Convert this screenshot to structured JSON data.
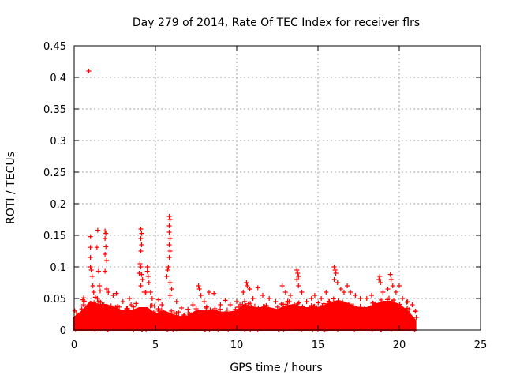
{
  "chart_data": {
    "type": "scatter",
    "title": "Day 279 of 2014, Rate Of TEC Index for receiver flrs",
    "xlabel": "GPS time / hours",
    "ylabel": "ROTI / TECUs",
    "xlim": [
      0,
      25
    ],
    "ylim": [
      0,
      0.45
    ],
    "x_ticks": [
      0,
      5,
      10,
      15,
      20,
      25
    ],
    "x_tick_labels": [
      "0",
      "5",
      "10",
      "15",
      "20",
      "25"
    ],
    "y_ticks": [
      0,
      0.05,
      0.1,
      0.15,
      0.2,
      0.25,
      0.3,
      0.35,
      0.4,
      0.45
    ],
    "y_tick_labels": [
      "0",
      "0.05",
      "0.1",
      "0.15",
      "0.2",
      "0.25",
      "0.3",
      "0.35",
      "0.4",
      "0.45"
    ],
    "grid": true,
    "marker": "+",
    "marker_color": "#ff0000",
    "series": [
      {
        "name": "ROTI",
        "points": [
          [
            0.9,
            0.41
          ],
          [
            1.0,
            0.148
          ],
          [
            1.0,
            0.131
          ],
          [
            1.0,
            0.115
          ],
          [
            1.0,
            0.1
          ],
          [
            1.05,
            0.095
          ],
          [
            1.1,
            0.085
          ],
          [
            1.15,
            0.07
          ],
          [
            1.2,
            0.06
          ],
          [
            1.3,
            0.052
          ],
          [
            1.4,
            0.131
          ],
          [
            1.45,
            0.158
          ],
          [
            1.5,
            0.093
          ],
          [
            1.55,
            0.07
          ],
          [
            1.6,
            0.062
          ],
          [
            1.9,
            0.157
          ],
          [
            1.95,
            0.153
          ],
          [
            1.9,
            0.145
          ],
          [
            1.95,
            0.132
          ],
          [
            1.9,
            0.12
          ],
          [
            2.0,
            0.11
          ],
          [
            1.9,
            0.093
          ],
          [
            2.0,
            0.065
          ],
          [
            2.1,
            0.06
          ],
          [
            4.1,
            0.16
          ],
          [
            4.15,
            0.153
          ],
          [
            4.1,
            0.145
          ],
          [
            4.15,
            0.135
          ],
          [
            4.1,
            0.125
          ],
          [
            4.05,
            0.105
          ],
          [
            4.1,
            0.1
          ],
          [
            4.0,
            0.09
          ],
          [
            4.15,
            0.088
          ],
          [
            4.2,
            0.08
          ],
          [
            4.1,
            0.07
          ],
          [
            4.3,
            0.06
          ],
          [
            4.4,
            0.06
          ],
          [
            4.5,
            0.1
          ],
          [
            4.5,
            0.093
          ],
          [
            4.55,
            0.085
          ],
          [
            4.6,
            0.075
          ],
          [
            4.7,
            0.06
          ],
          [
            4.8,
            0.05
          ],
          [
            5.85,
            0.18
          ],
          [
            5.9,
            0.175
          ],
          [
            5.85,
            0.165
          ],
          [
            5.85,
            0.155
          ],
          [
            5.9,
            0.145
          ],
          [
            5.85,
            0.135
          ],
          [
            5.9,
            0.125
          ],
          [
            5.85,
            0.115
          ],
          [
            5.8,
            0.1
          ],
          [
            5.75,
            0.095
          ],
          [
            5.7,
            0.085
          ],
          [
            5.9,
            0.075
          ],
          [
            6.0,
            0.065
          ],
          [
            5.9,
            0.055
          ],
          [
            2.4,
            0.055
          ],
          [
            2.6,
            0.058
          ],
          [
            3.0,
            0.045
          ],
          [
            3.4,
            0.05
          ],
          [
            3.5,
            0.04
          ],
          [
            3.8,
            0.042
          ],
          [
            5.2,
            0.048
          ],
          [
            5.4,
            0.04
          ],
          [
            6.3,
            0.045
          ],
          [
            6.6,
            0.035
          ],
          [
            7.0,
            0.033
          ],
          [
            7.3,
            0.04
          ],
          [
            7.65,
            0.07
          ],
          [
            7.7,
            0.065
          ],
          [
            7.8,
            0.055
          ],
          [
            8.0,
            0.045
          ],
          [
            8.3,
            0.06
          ],
          [
            8.6,
            0.058
          ],
          [
            9.0,
            0.04
          ],
          [
            9.3,
            0.047
          ],
          [
            9.6,
            0.04
          ],
          [
            10.0,
            0.045
          ],
          [
            10.4,
            0.06
          ],
          [
            10.6,
            0.075
          ],
          [
            10.65,
            0.07
          ],
          [
            10.8,
            0.065
          ],
          [
            11.0,
            0.05
          ],
          [
            11.3,
            0.067
          ],
          [
            11.6,
            0.055
          ],
          [
            12.0,
            0.05
          ],
          [
            12.4,
            0.045
          ],
          [
            12.8,
            0.07
          ],
          [
            13.0,
            0.06
          ],
          [
            13.3,
            0.055
          ],
          [
            13.7,
            0.095
          ],
          [
            13.75,
            0.09
          ],
          [
            13.8,
            0.085
          ],
          [
            13.7,
            0.08
          ],
          [
            13.8,
            0.07
          ],
          [
            14.0,
            0.06
          ],
          [
            14.3,
            0.045
          ],
          [
            14.6,
            0.05
          ],
          [
            14.8,
            0.055
          ],
          [
            15.2,
            0.05
          ],
          [
            15.5,
            0.06
          ],
          [
            15.7,
            0.045
          ],
          [
            16.0,
            0.1
          ],
          [
            16.05,
            0.095
          ],
          [
            16.1,
            0.09
          ],
          [
            16.0,
            0.08
          ],
          [
            16.2,
            0.075
          ],
          [
            16.4,
            0.065
          ],
          [
            16.6,
            0.06
          ],
          [
            16.8,
            0.07
          ],
          [
            17.0,
            0.06
          ],
          [
            17.3,
            0.055
          ],
          [
            17.6,
            0.05
          ],
          [
            18.0,
            0.05
          ],
          [
            18.3,
            0.055
          ],
          [
            18.8,
            0.085
          ],
          [
            18.75,
            0.08
          ],
          [
            18.85,
            0.075
          ],
          [
            19.0,
            0.06
          ],
          [
            19.3,
            0.065
          ],
          [
            19.45,
            0.088
          ],
          [
            19.5,
            0.08
          ],
          [
            19.6,
            0.07
          ],
          [
            19.8,
            0.06
          ],
          [
            20.0,
            0.07
          ],
          [
            20.2,
            0.05
          ],
          [
            20.5,
            0.045
          ],
          [
            20.8,
            0.04
          ],
          [
            21.0,
            0.03
          ],
          [
            21.05,
            0.02
          ]
        ],
        "dense_band": [
          [
            0.0,
            0.02
          ],
          [
            0.5,
            0.03
          ],
          [
            1.0,
            0.045
          ],
          [
            1.5,
            0.04
          ],
          [
            2.0,
            0.04
          ],
          [
            2.5,
            0.035
          ],
          [
            3.0,
            0.03
          ],
          [
            3.5,
            0.03
          ],
          [
            4.0,
            0.035
          ],
          [
            4.5,
            0.035
          ],
          [
            5.0,
            0.025
          ],
          [
            5.5,
            0.03
          ],
          [
            6.0,
            0.025
          ],
          [
            6.5,
            0.02
          ],
          [
            7.0,
            0.022
          ],
          [
            7.5,
            0.03
          ],
          [
            8.0,
            0.03
          ],
          [
            8.5,
            0.032
          ],
          [
            9.0,
            0.028
          ],
          [
            9.5,
            0.028
          ],
          [
            10.0,
            0.03
          ],
          [
            10.5,
            0.04
          ],
          [
            11.0,
            0.035
          ],
          [
            11.5,
            0.035
          ],
          [
            12.0,
            0.035
          ],
          [
            12.5,
            0.032
          ],
          [
            13.0,
            0.038
          ],
          [
            13.5,
            0.04
          ],
          [
            14.0,
            0.035
          ],
          [
            14.5,
            0.035
          ],
          [
            15.0,
            0.035
          ],
          [
            15.5,
            0.04
          ],
          [
            16.0,
            0.045
          ],
          [
            16.5,
            0.045
          ],
          [
            17.0,
            0.04
          ],
          [
            17.5,
            0.035
          ],
          [
            18.0,
            0.035
          ],
          [
            18.5,
            0.04
          ],
          [
            19.0,
            0.045
          ],
          [
            19.5,
            0.045
          ],
          [
            20.0,
            0.04
          ],
          [
            20.5,
            0.03
          ],
          [
            21.0,
            0.015
          ]
        ]
      }
    ]
  }
}
